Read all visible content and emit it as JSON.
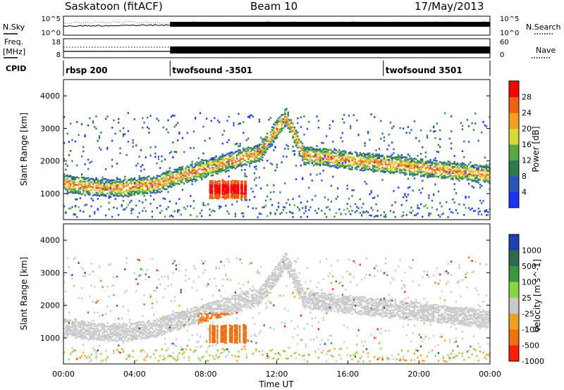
{
  "header": {
    "station": "Saskatoon (fitACF)",
    "beam": "Beam 10",
    "date": "17/May/2013"
  },
  "top_panels": {
    "nsky_label": "N.Sky",
    "nsky_ticks": [
      "10^5",
      "10^0"
    ],
    "nsearch_label": "N.Search",
    "nsearch_ticks": [
      "10^5",
      "10^0"
    ],
    "freq_label": "Freq.",
    "freq_unit": "[MHz]",
    "freq_ticks": [
      "18",
      "8"
    ],
    "nave_label": "Nave",
    "nave_ticks": [
      "60",
      "0"
    ],
    "cpid_label": "CPID",
    "cpid_segments": [
      {
        "label": "rbsp 200",
        "start_hour": 0
      },
      {
        "label": "twofsound -3501",
        "start_hour": 6
      },
      {
        "label": "twofsound 3501",
        "start_hour": 18
      }
    ]
  },
  "chart_data": [
    {
      "type": "heatmap",
      "quantity": "Power",
      "ylabel": "Slant Range [km]",
      "xlabel": "Time UT",
      "xlim_hours": [
        0,
        24
      ],
      "ylim_km": [
        200,
        4500
      ],
      "y_ticks": [
        "1000",
        "2000",
        "3000",
        "4000"
      ],
      "colorbar_label": "Power [dB]",
      "colorbar_ticks": [
        "4",
        "8",
        "12",
        "16",
        "20",
        "24",
        "28"
      ],
      "colorbar_colors": [
        "#1e32ff",
        "#2a55b8",
        "#2f7a4a",
        "#58a848",
        "#d8d838",
        "#f4a020",
        "#f06010",
        "#ff0000"
      ],
      "dominant_features": [
        {
          "hour_start": 0,
          "hour_end": 6,
          "range_km": 1300
        },
        {
          "hour_start": 6,
          "hour_end": 12,
          "range_km": 2100
        },
        {
          "hour_start": 11,
          "hour_end": 13,
          "range_km": 3300
        },
        {
          "hour_start": 13,
          "hour_end": 24,
          "range_km": 1700
        }
      ]
    },
    {
      "type": "heatmap",
      "quantity": "Velocity",
      "ylabel": "Slant Range [km]",
      "xlabel": "Time UT",
      "xlim_hours": [
        0,
        24
      ],
      "ylim_km": [
        200,
        4500
      ],
      "y_ticks": [
        "1000",
        "2000",
        "3000",
        "4000"
      ],
      "colorbar_label": "Velocity [m s^-1]",
      "colorbar_ticks": [
        "1000",
        "500",
        "100",
        "25",
        "-25",
        "-100",
        "-500",
        "-1000"
      ],
      "colorbar_colors": [
        "#2040b0",
        "#2f6a50",
        "#3f9640",
        "#86d640",
        "#c8c8c8",
        "#f0a020",
        "#f07010",
        "#ff2000"
      ]
    }
  ],
  "x_ticks": [
    "00:00",
    "04:00",
    "08:00",
    "12:00",
    "16:00",
    "20:00",
    "00:00"
  ],
  "xlabel": "Time UT"
}
